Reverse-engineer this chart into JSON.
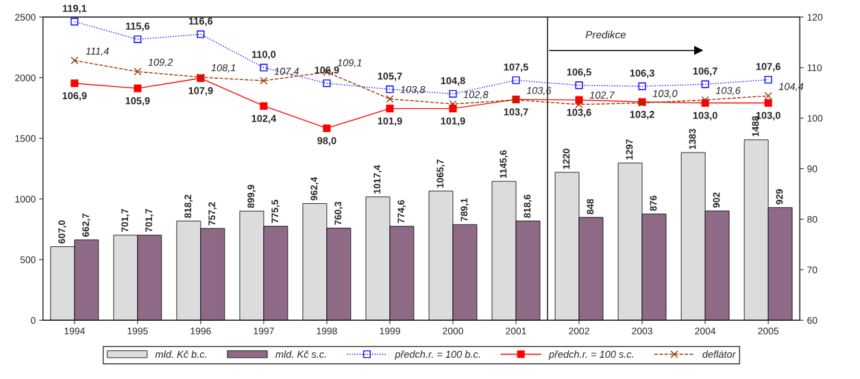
{
  "chart_data": {
    "type": "bar",
    "categories": [
      "1994",
      "1995",
      "1996",
      "1997",
      "1998",
      "1999",
      "2000",
      "2001",
      "2002",
      "2003",
      "2004",
      "2005"
    ],
    "series": [
      {
        "name": "mld. Kč b.c.",
        "color": "#dcdcdc",
        "values": [
          607.0,
          701.7,
          818.2,
          899.9,
          962.4,
          1017.4,
          1065.7,
          1145.6,
          1220,
          1297,
          1383,
          1488
        ],
        "value_labels": [
          "607,0",
          "701,7",
          "818,2",
          "899,9",
          "962,4",
          "1017,4",
          "1065,7",
          "1145,6",
          "1220",
          "1297",
          "1383",
          "1488"
        ]
      },
      {
        "name": "mld. Kč s.c.",
        "color": "#8e6a86",
        "values": [
          662.7,
          701.7,
          757.2,
          775.5,
          760.3,
          774.6,
          789.1,
          818.6,
          848,
          876,
          902,
          929
        ],
        "value_labels": [
          "662,7",
          "701,7",
          "757,2",
          "775,5",
          "760,3",
          "774,6",
          "789,1",
          "818,6",
          "848",
          "876",
          "902",
          "929"
        ]
      },
      {
        "name": "předch.r. = 100 b.c.",
        "type": "line",
        "axis": "y2",
        "color": "#0000ff",
        "marker": "square",
        "line_style": "dotted",
        "values": [
          119.1,
          115.6,
          116.6,
          110.0,
          106.9,
          105.7,
          104.8,
          107.5,
          106.5,
          106.3,
          106.7,
          107.6
        ],
        "value_labels": [
          "119,1",
          "115,6",
          "116,6",
          "110,0",
          "106,9",
          "105,7",
          "104,8",
          "107,5",
          "106,5",
          "106,3",
          "106,7",
          "107,6"
        ]
      },
      {
        "name": "předch.r. = 100 s.c.",
        "type": "line",
        "axis": "y2",
        "color": "#ff0000",
        "marker": "square",
        "line_style": "solid",
        "values": [
          106.9,
          105.9,
          107.9,
          102.4,
          98.0,
          101.9,
          101.9,
          103.7,
          103.6,
          103.2,
          103.0,
          103.0
        ],
        "value_labels": [
          "106,9",
          "105,9",
          "107,9",
          "102,4",
          "98,0",
          "101,9",
          "101,9",
          "103,7",
          "103,6",
          "103,2",
          "103,0",
          "103,0"
        ]
      },
      {
        "name": "deflátor",
        "type": "line",
        "axis": "y2",
        "color": "#993300",
        "marker": "cross",
        "line_style": "dashed",
        "values": [
          111.4,
          109.2,
          108.1,
          107.4,
          109.1,
          103.8,
          102.8,
          103.6,
          102.7,
          103.0,
          103.6,
          104.4
        ],
        "value_labels": [
          "111,4",
          "109,2",
          "108,1",
          "107,4",
          "109,1",
          "103,8",
          "102,8",
          "103,6",
          "102,7",
          "103,0",
          "103,6",
          "104,4"
        ]
      }
    ],
    "ylim": [
      0,
      2500
    ],
    "yticks": [
      0,
      500,
      1000,
      1500,
      2000,
      2500
    ],
    "y2lim": [
      60,
      120
    ],
    "y2ticks": [
      60,
      70,
      80,
      90,
      100,
      110,
      120
    ],
    "annotations": [
      "Predikce"
    ],
    "legend": "bottom",
    "grid": false
  }
}
